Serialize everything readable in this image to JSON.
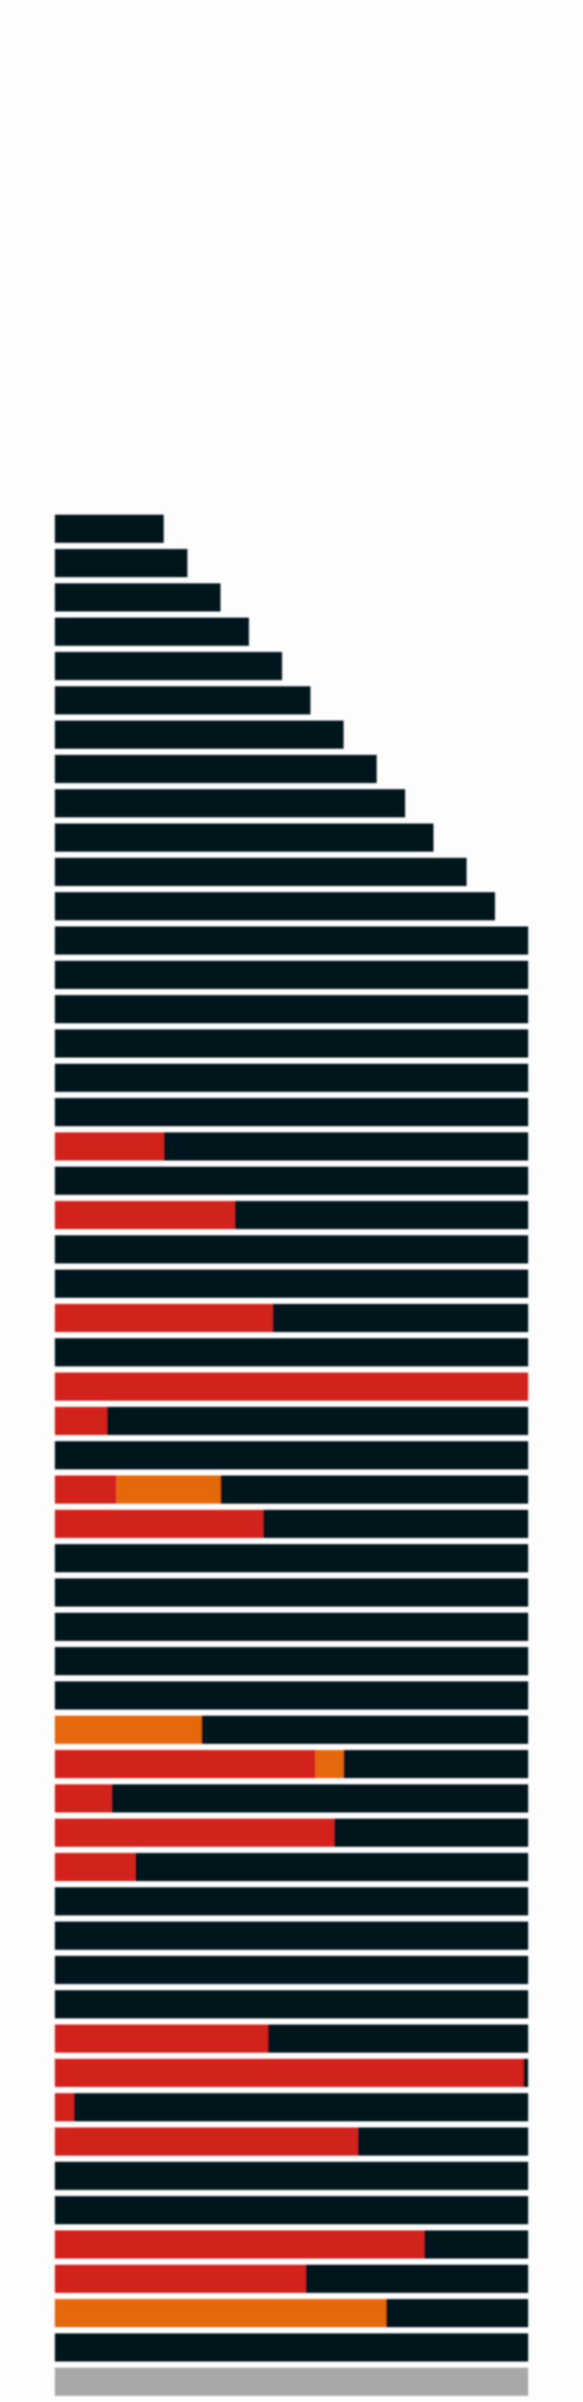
{
  "chart_data": {
    "type": "bar",
    "orientation": "horizontal",
    "stacked": true,
    "grid": false,
    "legend": "none",
    "xlim": [
      0,
      100
    ],
    "colors": {
      "base": "#06151c",
      "red": "#d1201a",
      "orange": "#e5670f",
      "grey": "#a8a8a8"
    },
    "series": [
      {
        "name": "",
        "color": "red",
        "values": [
          0,
          0,
          0,
          0,
          0,
          0,
          0,
          0,
          0,
          0,
          0,
          0,
          0,
          0,
          0,
          0,
          0,
          0,
          23,
          0,
          38,
          0,
          0,
          46,
          0,
          100,
          11,
          0,
          13,
          44,
          0,
          0,
          0,
          0,
          0,
          0,
          55,
          12,
          59,
          17,
          0,
          0,
          0,
          0,
          45,
          99,
          4,
          64,
          0,
          0,
          78,
          53,
          0,
          0,
          0
        ]
      },
      {
        "name": "",
        "color": "orange",
        "values": [
          0,
          0,
          0,
          0,
          0,
          0,
          0,
          0,
          0,
          0,
          0,
          0,
          0,
          0,
          0,
          0,
          0,
          0,
          0,
          0,
          0,
          0,
          0,
          0,
          0,
          0,
          0,
          0,
          22,
          0,
          0,
          0,
          0,
          0,
          0,
          31,
          6,
          0,
          0,
          0,
          0,
          0,
          0,
          0,
          0,
          0,
          0,
          0,
          0,
          0,
          0,
          0,
          70,
          0,
          0
        ]
      },
      {
        "name": "",
        "color": "base",
        "values": [
          23,
          28,
          35,
          41,
          48,
          54,
          61,
          68,
          74,
          80,
          87,
          93,
          100,
          100,
          100,
          100,
          100,
          100,
          77,
          100,
          62,
          100,
          100,
          54,
          100,
          0,
          89,
          100,
          65,
          56,
          100,
          100,
          100,
          100,
          100,
          69,
          39,
          88,
          41,
          83,
          100,
          100,
          100,
          100,
          55,
          1,
          96,
          36,
          100,
          100,
          22,
          47,
          30,
          100,
          0
        ]
      },
      {
        "name": "",
        "color": "grey",
        "values": [
          0,
          0,
          0,
          0,
          0,
          0,
          0,
          0,
          0,
          0,
          0,
          0,
          0,
          0,
          0,
          0,
          0,
          0,
          0,
          0,
          0,
          0,
          0,
          0,
          0,
          0,
          0,
          0,
          0,
          0,
          0,
          0,
          0,
          0,
          0,
          0,
          0,
          0,
          0,
          0,
          0,
          0,
          0,
          0,
          0,
          0,
          0,
          0,
          0,
          0,
          0,
          0,
          0,
          0,
          100
        ]
      }
    ]
  }
}
